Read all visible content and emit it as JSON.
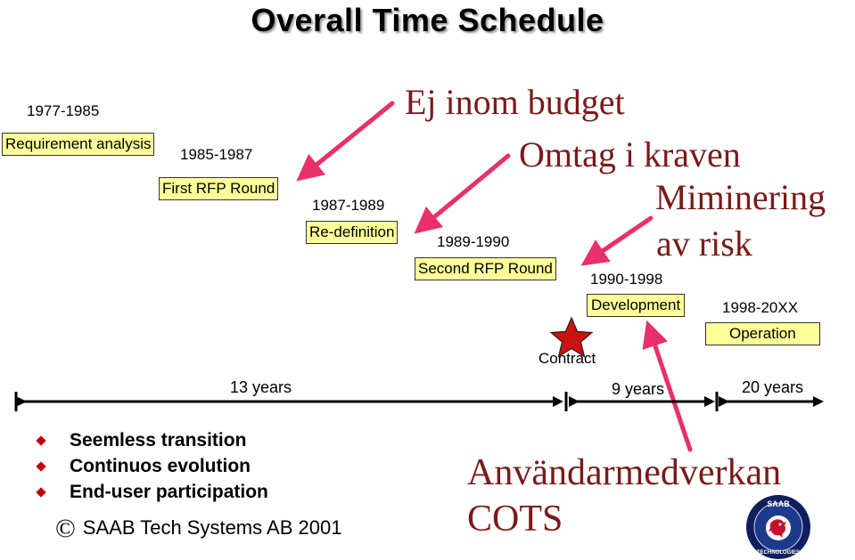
{
  "title": "Overall Time Schedule",
  "phases": [
    {
      "period": "1977-1985",
      "label": "Requirement analysis"
    },
    {
      "period": "1985-1987",
      "label": "First RFP Round"
    },
    {
      "period": "1987-1989",
      "label": "Re-definition"
    },
    {
      "period": "1989-1990",
      "label": "Second RFP Round"
    },
    {
      "period": "1990-1998",
      "label": "Development"
    },
    {
      "period": "1998-20XX",
      "label": "Operation"
    }
  ],
  "annotations": {
    "budget": "Ej inom budget",
    "requirements": "Omtag i kraven",
    "risk_line1": "Miminering",
    "risk_line2": "av risk",
    "user_involvement": "Användarmedverkan",
    "cots": "COTS"
  },
  "milestone": {
    "label": "Contract",
    "icon": "star-icon",
    "color": "#cc1111"
  },
  "durations": [
    "13 years",
    "9 years",
    "20 years"
  ],
  "bullets": [
    "Seemless transition",
    "Continuos evolution",
    "End-user participation"
  ],
  "copyright": {
    "symbol": "©",
    "text": "SAAB Tech Systems AB 2001"
  },
  "logo": {
    "top_text": "SAAB",
    "bottom_text": "TECHNOLOGIES",
    "icon": "saab-griffin-logo"
  },
  "colors": {
    "phase_fill": "#ffff99",
    "arrow_pink": "#e8306a",
    "annotation_text": "#7a1a1a",
    "bullet": "#c00000"
  }
}
